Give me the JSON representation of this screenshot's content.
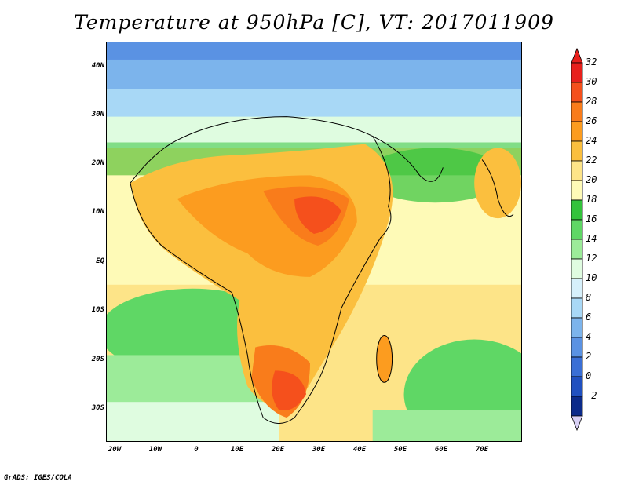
{
  "title": "Temperature at 950hPa [C], VT: 2017011909",
  "credit": "GrADS: IGES/COLA",
  "lat_labels": [
    "40N",
    "30N",
    "20N",
    "10N",
    "EQ",
    "10S",
    "20S",
    "30S"
  ],
  "lon_labels": [
    "20W",
    "10W",
    "0",
    "10E",
    "20E",
    "30E",
    "40E",
    "50E",
    "60E",
    "70E"
  ],
  "colorbar": {
    "labels": [
      "32",
      "30",
      "28",
      "26",
      "24",
      "22",
      "20",
      "18",
      "16",
      "14",
      "12",
      "10",
      "8",
      "6",
      "4",
      "2",
      "0",
      "-2"
    ],
    "colors": [
      "#e8201c",
      "#f5501c",
      "#f97c1b",
      "#fc9c1f",
      "#fbbf3e",
      "#fde488",
      "#fefab7",
      "#33c33c",
      "#5fd765",
      "#9ceb99",
      "#dffce0",
      "#d6f0fb",
      "#a8d8f6",
      "#7cb4ec",
      "#5a92e3",
      "#3a6fd6",
      "#2050c0",
      "#0b2a8a"
    ]
  }
}
